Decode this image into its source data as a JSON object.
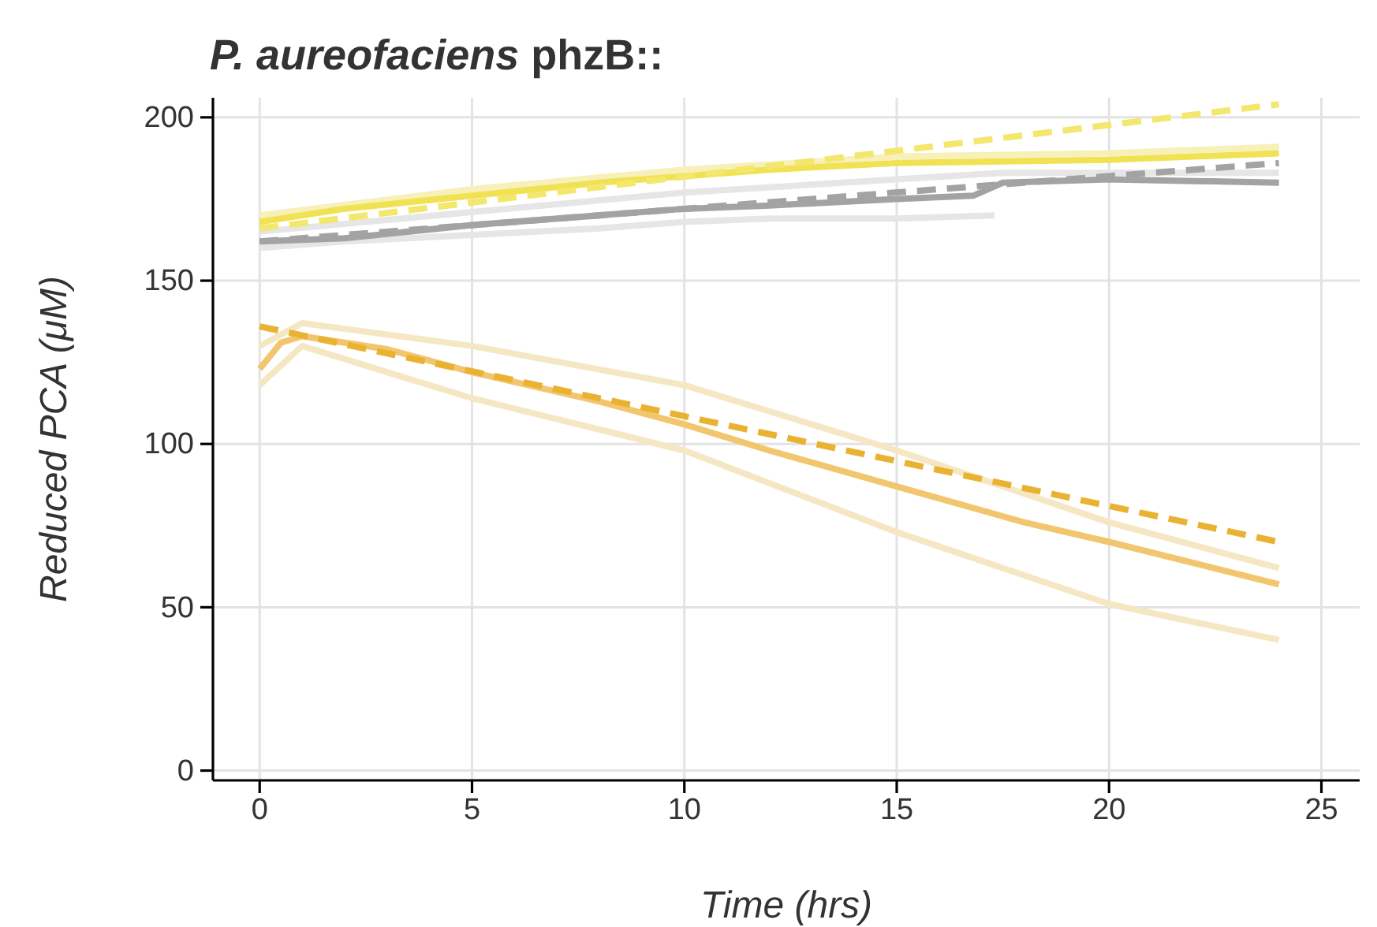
{
  "chart_data": {
    "type": "line",
    "title": "P. aureofaciens phzB::",
    "xlabel": "Time (hrs)",
    "ylabel": "Reduced PCA (μM)",
    "xlim": [
      -1.1,
      25.9
    ],
    "ylim": [
      -3,
      206
    ],
    "xticks": [
      0,
      5,
      10,
      15,
      20,
      25
    ],
    "yticks": [
      0,
      50,
      100,
      150,
      200
    ],
    "grid": true,
    "marker": "none",
    "series": [
      {
        "color": "#e6e6e6",
        "line_style": "solid",
        "x": [
          0,
          2,
          5,
          8,
          10,
          12,
          15,
          17.3
        ],
        "values": [
          160,
          162,
          164,
          166,
          168,
          169,
          169,
          170
        ]
      },
      {
        "color": "#e6e6e6",
        "line_style": "solid",
        "x": [
          0,
          5,
          10,
          15,
          17.5,
          20,
          24
        ],
        "values": [
          165,
          171,
          177,
          181,
          183,
          183,
          183
        ]
      },
      {
        "color": "#f7f0b8",
        "line_style": "solid",
        "x": [
          0,
          5,
          10,
          15,
          20,
          24
        ],
        "values": [
          170,
          178,
          184,
          188,
          189,
          191
        ]
      },
      {
        "color": "#f6e7c4",
        "line_style": "solid",
        "x": [
          0,
          1,
          5,
          10,
          15,
          20,
          24
        ],
        "values": [
          130,
          137,
          130,
          118,
          98,
          76,
          62
        ]
      },
      {
        "color": "#f6e7c4",
        "line_style": "solid",
        "x": [
          0,
          1,
          5,
          10,
          15,
          20,
          24
        ],
        "values": [
          118,
          130,
          114,
          98,
          73,
          51,
          40
        ]
      },
      {
        "color": "#f0e253",
        "line_style": "solid",
        "x": [
          0,
          2,
          5,
          8,
          10,
          12,
          15,
          20,
          24
        ],
        "values": [
          168,
          172,
          176,
          180,
          182,
          184,
          186,
          187,
          189
        ]
      },
      {
        "color": "#f3e76e",
        "line_style": "dashed",
        "x": [
          0,
          24
        ],
        "values": [
          166,
          204
        ]
      },
      {
        "color": "#a3a3a3",
        "line_style": "solid",
        "x": [
          0,
          2,
          5,
          8,
          10,
          12,
          15,
          16.8,
          17.5,
          20,
          24
        ],
        "values": [
          162,
          163,
          167,
          170,
          172,
          173,
          175,
          176,
          180,
          181,
          180
        ]
      },
      {
        "color": "#a3a3a3",
        "line_style": "dashed",
        "x": [
          0,
          24
        ],
        "values": [
          162,
          186
        ]
      },
      {
        "color": "#f2c66e",
        "line_style": "solid",
        "x": [
          0,
          0.5,
          1,
          3,
          5,
          8,
          10,
          12,
          15,
          18,
          20,
          24
        ],
        "values": [
          123,
          131,
          133,
          129,
          122,
          113,
          106,
          98,
          87,
          76,
          70,
          57
        ]
      },
      {
        "color": "#eab232",
        "line_style": "dashed",
        "x": [
          0,
          24
        ],
        "values": [
          136,
          70
        ]
      }
    ]
  }
}
